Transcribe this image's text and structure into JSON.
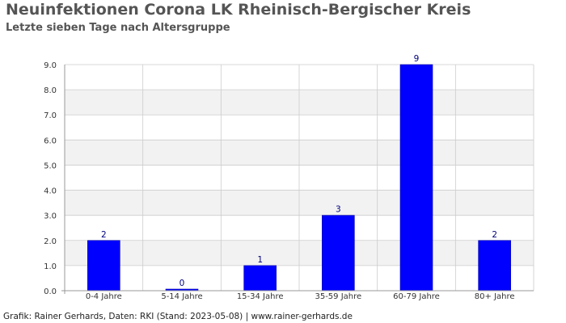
{
  "header": {
    "title": "Neuinfektionen Corona LK Rheinisch-Bergischer Kreis",
    "subtitle": "Letzte sieben Tage nach Altersgruppe"
  },
  "footer": {
    "credit": "Grafik: Rainer Gerhards, Daten: RKI (Stand: 2023-05-08) | www.rainer-gerhards.de"
  },
  "colors": {
    "bar": "#0000ff",
    "value_label": "#000080",
    "band": "#f2f2f2",
    "grid": "#cccccc",
    "axis": "#999999"
  },
  "chart_data": {
    "type": "bar",
    "title": "Neuinfektionen Corona LK Rheinisch-Bergischer Kreis",
    "subtitle": "Letzte sieben Tage nach Altersgruppe",
    "categories": [
      "0-4 Jahre",
      "5-14 Jahre",
      "15-34 Jahre",
      "35-59 Jahre",
      "60-79 Jahre",
      "80+ Jahre"
    ],
    "values": [
      2,
      0,
      1,
      3,
      9,
      2
    ],
    "ylim": [
      0,
      9
    ],
    "yticks": [
      "0.0",
      "1.0",
      "2.0",
      "3.0",
      "4.0",
      "5.0",
      "6.0",
      "7.0",
      "8.0",
      "9.0"
    ],
    "xlabel": "",
    "ylabel": "",
    "grid": true,
    "legend": "none"
  }
}
